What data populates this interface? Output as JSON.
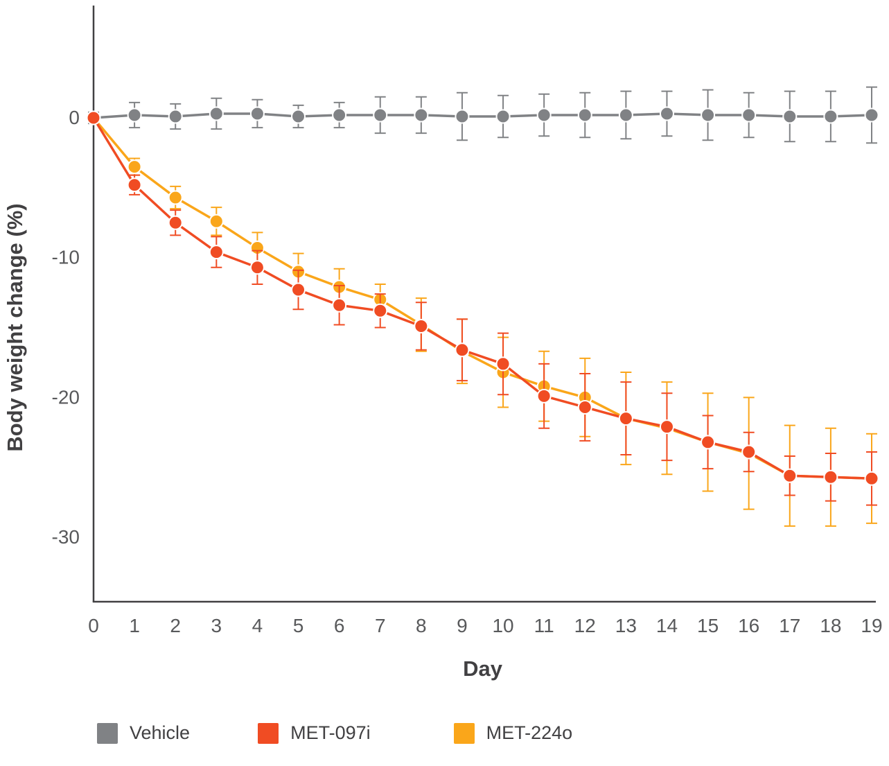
{
  "figure": {
    "ylabel": "Body weight change (%)",
    "xlabel": "Day"
  },
  "legend": [
    {
      "label": "Vehicle",
      "color": "#808285"
    },
    {
      "label": "MET-097i",
      "color": "#F04C23"
    },
    {
      "label": "MET-224o",
      "color": "#FAA61A"
    }
  ],
  "chart_data": {
    "type": "line",
    "title": "",
    "xlabel": "Day",
    "ylabel": "Body weight change (%)",
    "x": [
      0,
      1,
      2,
      3,
      4,
      5,
      6,
      7,
      8,
      9,
      10,
      11,
      12,
      13,
      14,
      15,
      16,
      17,
      18,
      19
    ],
    "xticks": [
      0,
      1,
      2,
      3,
      4,
      5,
      6,
      7,
      8,
      9,
      10,
      11,
      12,
      13,
      14,
      15,
      16,
      17,
      18,
      19
    ],
    "yticks": [
      0,
      -10,
      -20,
      -30
    ],
    "ylim": [
      -34.5,
      8
    ],
    "grid": false,
    "legend_position": "bottom",
    "error_bars": true,
    "series": [
      {
        "name": "Vehicle",
        "color": "#808285",
        "values": [
          0,
          0.2,
          0.1,
          0.3,
          0.3,
          0.1,
          0.2,
          0.2,
          0.2,
          0.1,
          0.1,
          0.2,
          0.2,
          0.2,
          0.3,
          0.2,
          0.2,
          0.1,
          0.1,
          0.2
        ],
        "errors": [
          0.4,
          0.9,
          0.9,
          1.1,
          1.0,
          0.8,
          0.9,
          1.3,
          1.3,
          1.7,
          1.5,
          1.5,
          1.6,
          1.7,
          1.6,
          1.8,
          1.6,
          1.8,
          1.8,
          2.0
        ]
      },
      {
        "name": "MET-097i",
        "color": "#F04C23",
        "values": [
          0,
          -4.8,
          -7.5,
          -9.6,
          -10.7,
          -12.3,
          -13.4,
          -13.8,
          -14.9,
          -16.6,
          -17.6,
          -19.9,
          -20.7,
          -21.5,
          -22.1,
          -23.2,
          -23.9,
          -25.6,
          -25.7,
          -25.8
        ],
        "errors": [
          0.3,
          0.7,
          0.9,
          1.1,
          1.2,
          1.4,
          1.4,
          1.2,
          1.7,
          2.2,
          2.2,
          2.3,
          2.4,
          2.6,
          2.4,
          1.9,
          1.4,
          1.4,
          1.7,
          1.9
        ]
      },
      {
        "name": "MET-224o",
        "color": "#FAA61A",
        "values": [
          0,
          -3.5,
          -5.7,
          -7.4,
          -9.3,
          -11.0,
          -12.1,
          -13.0,
          -14.8,
          -16.7,
          -18.2,
          -19.2,
          -20.0,
          -21.5,
          -22.2,
          -23.2,
          -24.0,
          -25.6,
          -25.7,
          -25.8
        ],
        "errors": [
          0.3,
          0.6,
          0.8,
          1.0,
          1.1,
          1.3,
          1.3,
          1.1,
          1.9,
          2.3,
          2.5,
          2.5,
          2.8,
          3.3,
          3.3,
          3.5,
          4.0,
          3.6,
          3.5,
          3.2
        ]
      }
    ]
  }
}
